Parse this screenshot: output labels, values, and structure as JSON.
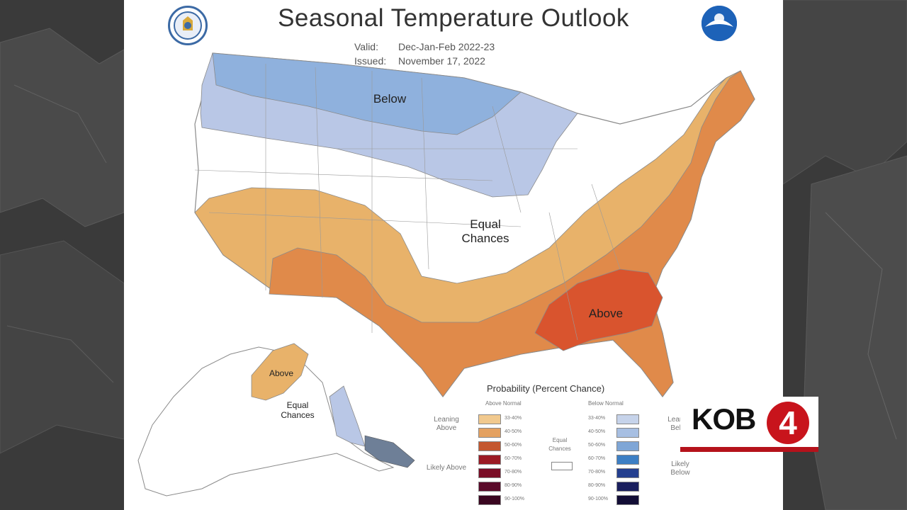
{
  "header": {
    "title": "Seasonal Temperature Outlook",
    "valid_label": "Valid:",
    "valid_value": "Dec-Jan-Feb 2022-23",
    "issued_label": "Issued:",
    "issued_value": "November 17, 2022"
  },
  "map": {
    "labels": {
      "below": "Below",
      "equal_chances": "Equal Chances",
      "above": "Above",
      "alaska_above": "Above",
      "alaska_equal_chances": "Equal Chances"
    },
    "colors": {
      "below_light": "#b9c7e6",
      "below_dark": "#8fb1dd",
      "above_33": "#e8b26a",
      "above_40": "#e08a4a",
      "above_50": "#d9542e",
      "outline": "#8a8a8a"
    }
  },
  "legend": {
    "title": "Probability (Percent Chance)",
    "above_header": "Above Normal",
    "below_header": "Below Normal",
    "leaning_above": "Leaning Above",
    "likely_above": "Likely Above",
    "leaning_below": "Leaning Below",
    "likely_below": "Likely Below",
    "equal_chances": "Equal Chances",
    "above_bins": [
      {
        "label": "33-40%",
        "color": "#f1c98e"
      },
      {
        "label": "40-50%",
        "color": "#e4a160"
      },
      {
        "label": "50-60%",
        "color": "#c4572f"
      },
      {
        "label": "60-70%",
        "color": "#9b1a24"
      },
      {
        "label": "70-80%",
        "color": "#7a0d26"
      },
      {
        "label": "80-90%",
        "color": "#5a0a2a"
      },
      {
        "label": "90-100%",
        "color": "#3a0620"
      }
    ],
    "below_bins": [
      {
        "label": "33-40%",
        "color": "#c6d3ea"
      },
      {
        "label": "40-50%",
        "color": "#a7bfe2"
      },
      {
        "label": "50-60%",
        "color": "#7fa6d6"
      },
      {
        "label": "60-70%",
        "color": "#3d7fc4"
      },
      {
        "label": "70-80%",
        "color": "#243f8f"
      },
      {
        "label": "80-90%",
        "color": "#1a1f5e"
      },
      {
        "label": "90-100%",
        "color": "#120d35"
      }
    ]
  },
  "station": {
    "logo_text": "KOB",
    "logo_number": "4",
    "bar_color": "#b5121b"
  }
}
